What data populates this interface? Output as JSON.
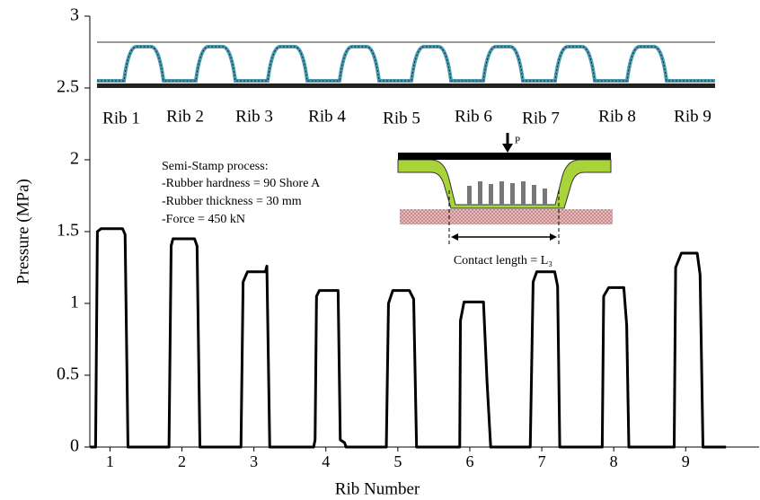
{
  "chart_data": {
    "type": "line",
    "x_label": "Rib Number",
    "y_label": "Pressure (MPa)",
    "x": [
      0.725,
      0.8,
      0.825,
      0.875,
      1.175,
      1.21,
      1.25,
      1.82,
      1.85,
      1.875,
      2.175,
      2.21,
      2.25,
      2.82,
      2.85,
      2.91,
      3.16,
      3.18,
      3.22,
      3.83,
      3.85,
      3.87,
      3.91,
      4.17,
      4.2,
      4.26,
      4.28,
      4.84,
      4.87,
      4.93,
      5.16,
      5.22,
      5.26,
      5.86,
      5.87,
      5.92,
      6.19,
      6.24,
      6.29,
      6.84,
      6.88,
      6.93,
      7.18,
      7.22,
      7.25,
      7.84,
      7.86,
      7.93,
      8.14,
      8.18,
      8.21,
      8.84,
      8.86,
      8.94,
      9.16,
      9.2,
      9.24,
      9.56
    ],
    "values": [
      0,
      0,
      1.5,
      1.52,
      1.52,
      1.48,
      0,
      0,
      1.4,
      1.45,
      1.45,
      1.4,
      0,
      0,
      1.15,
      1.22,
      1.22,
      1.26,
      0,
      0,
      0.05,
      1.05,
      1.09,
      1.09,
      0.05,
      0.03,
      0,
      0,
      1.0,
      1.09,
      1.09,
      1.03,
      0,
      0,
      0.88,
      1.01,
      1.01,
      0.45,
      0,
      0,
      1.15,
      1.22,
      1.22,
      1.12,
      0,
      0,
      1.05,
      1.11,
      1.11,
      0.85,
      0,
      0,
      1.25,
      1.35,
      1.35,
      1.2,
      0,
      0
    ],
    "color": "#000000",
    "xlim": [
      0.72,
      10.02
    ],
    "xticks": [
      1,
      2,
      3,
      4,
      5,
      6,
      7,
      8,
      9
    ],
    "ylim": [
      0,
      3
    ],
    "yticks": [
      0,
      0.5,
      1,
      1.5,
      2,
      2.5,
      3
    ],
    "grid": false,
    "rib_labels": [
      "Rib 1",
      "Rib 2",
      "Rib 3",
      "Rib 4",
      "Rib 5",
      "Rib 6",
      "Rib 7",
      "Rib 8",
      "Rib 9"
    ],
    "process_text": [
      "Semi-Stamp process:",
      "-Rubber hardness = 90 Shore A",
      "-Rubber thickness = 30 mm",
      "-Force = 450 kN"
    ],
    "force_label": "P",
    "contact_label": "Contact length = L₃"
  }
}
